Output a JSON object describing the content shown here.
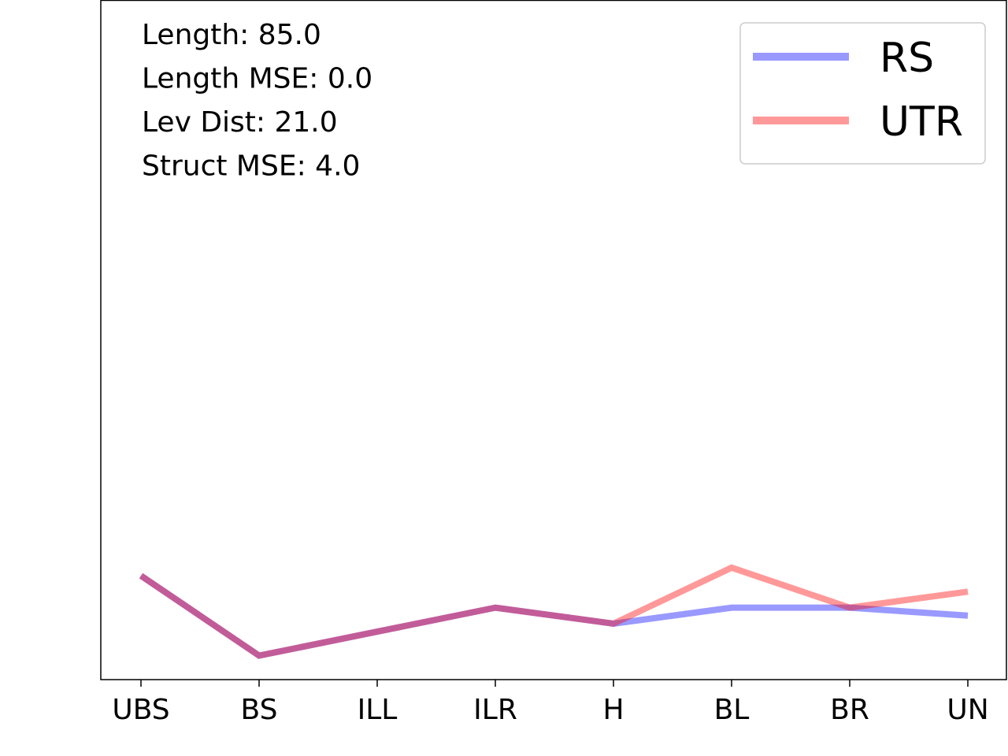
{
  "chart_data": {
    "type": "line",
    "title": "",
    "xlabel": "",
    "ylabel": "",
    "categories": [
      "UBS",
      "BS",
      "ILL",
      "ILR",
      "H",
      "BL",
      "BR",
      "UN"
    ],
    "ylim": [
      0,
      85
    ],
    "grid": false,
    "y_ticks_shown": false,
    "legend_placement": "top-right",
    "series": [
      {
        "name": "RS",
        "color": "#0000ff",
        "alpha": 0.4,
        "values": [
          13,
          3,
          6,
          9,
          7,
          9,
          9,
          8
        ]
      },
      {
        "name": "UTR",
        "color": "#ff0000",
        "alpha": 0.4,
        "values": [
          13,
          3,
          6,
          9,
          7,
          14,
          9,
          11
        ]
      }
    ],
    "annotations": [
      "Length: 85.0",
      "Length MSE: 0.0",
      "Lev Dist: 21.0",
      "Struct MSE: 4.0"
    ]
  }
}
